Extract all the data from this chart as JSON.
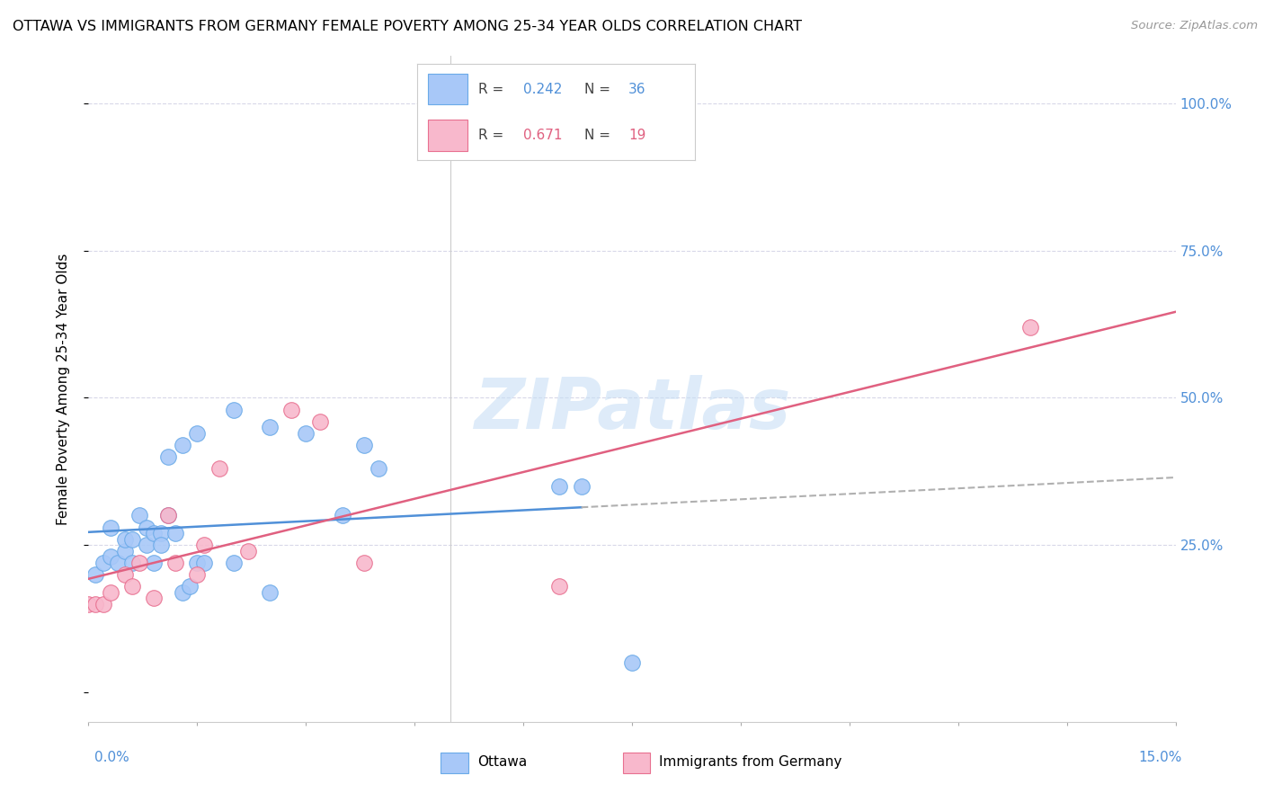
{
  "title": "OTTAWA VS IMMIGRANTS FROM GERMANY FEMALE POVERTY AMONG 25-34 YEAR OLDS CORRELATION CHART",
  "source": "Source: ZipAtlas.com",
  "ylabel": "Female Poverty Among 25-34 Year Olds",
  "xmin": 0.0,
  "xmax": 0.15,
  "ymin": -0.05,
  "ymax": 1.08,
  "color_ottawa": "#a8c8f8",
  "color_ottawa_edge": "#6aaae8",
  "color_germany": "#f8b8cc",
  "color_germany_edge": "#e87090",
  "color_ottawa_line": "#5090d8",
  "color_germany_line": "#e06080",
  "color_dashed": "#b0b0b0",
  "watermark_color": "#c8dff5",
  "grid_color": "#d8d8e8",
  "ytick_color": "#5090d8",
  "xtick_color": "#5090d8",
  "legend_r1": "0.242",
  "legend_n1": "36",
  "legend_r2": "0.671",
  "legend_n2": "19",
  "ottawa_x": [
    0.001,
    0.002,
    0.003,
    0.003,
    0.004,
    0.005,
    0.005,
    0.006,
    0.006,
    0.007,
    0.008,
    0.008,
    0.009,
    0.009,
    0.01,
    0.01,
    0.011,
    0.011,
    0.012,
    0.013,
    0.013,
    0.014,
    0.015,
    0.015,
    0.016,
    0.02,
    0.02,
    0.025,
    0.025,
    0.03,
    0.035,
    0.038,
    0.04,
    0.065,
    0.068,
    0.075
  ],
  "ottawa_y": [
    0.2,
    0.22,
    0.23,
    0.28,
    0.22,
    0.24,
    0.26,
    0.22,
    0.26,
    0.3,
    0.28,
    0.25,
    0.27,
    0.22,
    0.27,
    0.25,
    0.3,
    0.4,
    0.27,
    0.42,
    0.17,
    0.18,
    0.22,
    0.44,
    0.22,
    0.22,
    0.48,
    0.45,
    0.17,
    0.44,
    0.3,
    0.42,
    0.38,
    0.35,
    0.35,
    0.05
  ],
  "germany_x": [
    0.0,
    0.001,
    0.002,
    0.003,
    0.005,
    0.006,
    0.007,
    0.009,
    0.011,
    0.012,
    0.015,
    0.016,
    0.018,
    0.022,
    0.028,
    0.032,
    0.038,
    0.065,
    0.13
  ],
  "germany_y": [
    0.15,
    0.15,
    0.15,
    0.17,
    0.2,
    0.18,
    0.22,
    0.16,
    0.3,
    0.22,
    0.2,
    0.25,
    0.38,
    0.24,
    0.48,
    0.46,
    0.22,
    0.18,
    0.62
  ]
}
